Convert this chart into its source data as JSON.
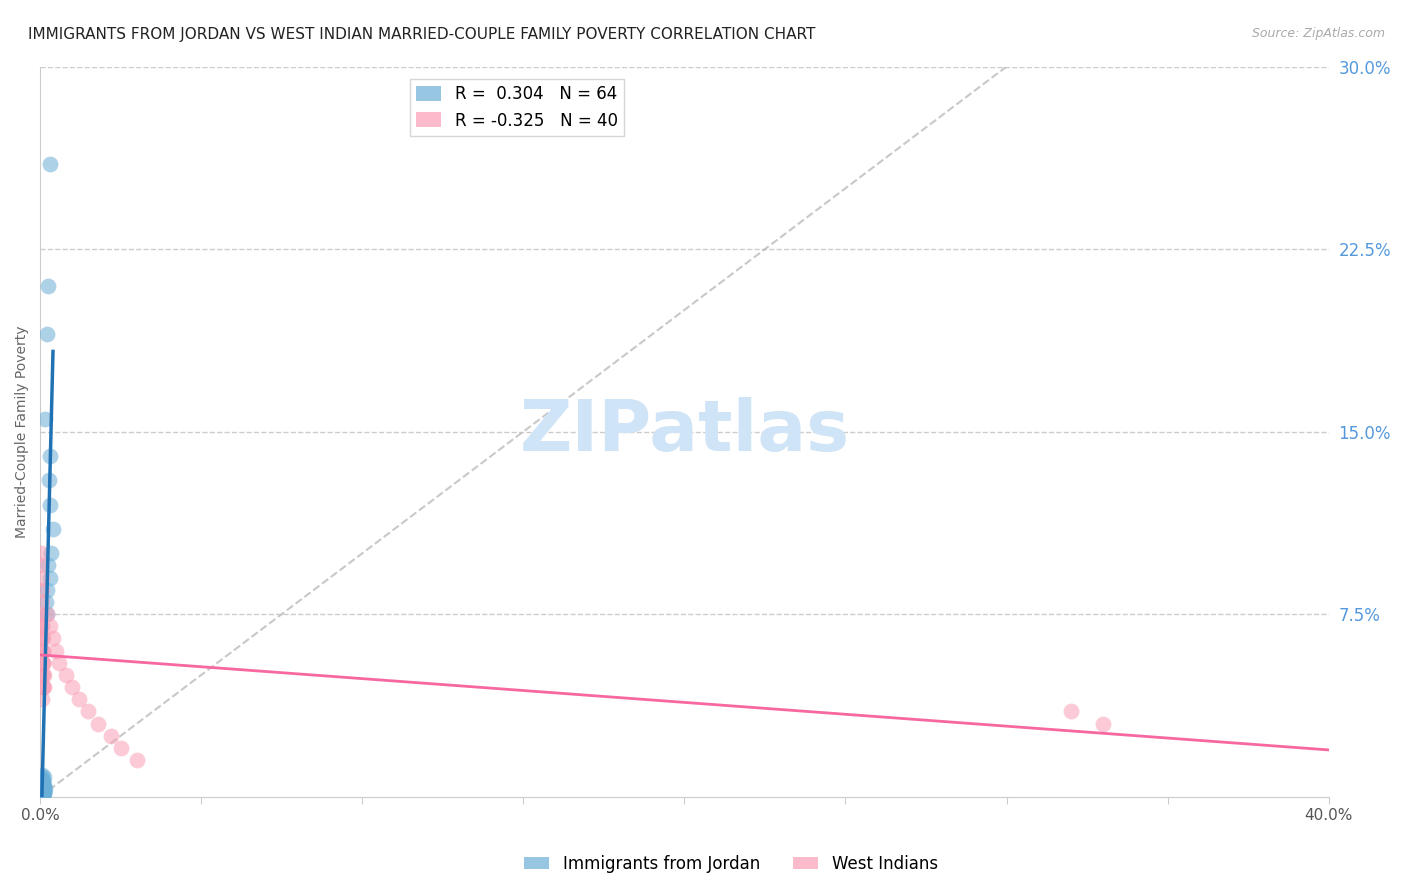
{
  "title": "IMMIGRANTS FROM JORDAN VS WEST INDIAN MARRIED-COUPLE FAMILY POVERTY CORRELATION CHART",
  "source": "Source: ZipAtlas.com",
  "ylabel": "Married-Couple Family Poverty",
  "legend_label_1": "Immigrants from Jordan",
  "legend_label_2": "West Indians",
  "R1": 0.304,
  "N1": 64,
  "R2": -0.325,
  "N2": 40,
  "color_blue": "#6baed6",
  "color_pink": "#fa9fb5",
  "color_blue_line": "#2171b5",
  "color_pink_line": "#f768a1",
  "color_dashed": "#bbbbbb",
  "xlim": [
    0.0,
    0.4
  ],
  "ylim": [
    0.0,
    0.3
  ],
  "jordan_x": [
    0.0005,
    0.001,
    0.0008,
    0.0012,
    0.0006,
    0.0009,
    0.0015,
    0.0007,
    0.0011,
    0.0004,
    0.0003,
    0.0006,
    0.0008,
    0.001,
    0.0005,
    0.0007,
    0.0009,
    0.0004,
    0.0006,
    0.0008,
    0.001,
    0.0012,
    0.0005,
    0.0003,
    0.0007,
    0.0009,
    0.0011,
    0.0006,
    0.0004,
    0.0008,
    0.001,
    0.0005,
    0.0007,
    0.0003,
    0.0009,
    0.0006,
    0.0004,
    0.0008,
    0.0005,
    0.0007,
    0.0003,
    0.0006,
    0.0004,
    0.0008,
    0.001,
    0.0005,
    0.0007,
    0.0009,
    0.0011,
    0.0013,
    0.002,
    0.0018,
    0.0022,
    0.003,
    0.0025,
    0.0035,
    0.004,
    0.003,
    0.0028,
    0.0032,
    0.0015,
    0.002,
    0.0025,
    0.003
  ],
  "jordan_y": [
    0.002,
    0.003,
    0.001,
    0.002,
    0.004,
    0.001,
    0.003,
    0.002,
    0.001,
    0.003,
    0.004,
    0.002,
    0.005,
    0.003,
    0.001,
    0.002,
    0.004,
    0.003,
    0.002,
    0.001,
    0.005,
    0.003,
    0.002,
    0.004,
    0.001,
    0.003,
    0.002,
    0.005,
    0.003,
    0.001,
    0.006,
    0.004,
    0.002,
    0.005,
    0.003,
    0.007,
    0.004,
    0.002,
    0.006,
    0.003,
    0.008,
    0.005,
    0.003,
    0.007,
    0.004,
    0.009,
    0.006,
    0.004,
    0.008,
    0.005,
    0.075,
    0.08,
    0.085,
    0.09,
    0.095,
    0.1,
    0.11,
    0.12,
    0.13,
    0.14,
    0.155,
    0.19,
    0.21,
    0.26
  ],
  "westindian_x": [
    0.0003,
    0.0005,
    0.0004,
    0.0006,
    0.0008,
    0.001,
    0.0007,
    0.0009,
    0.0005,
    0.0003,
    0.0006,
    0.0008,
    0.001,
    0.0012,
    0.0004,
    0.0007,
    0.0009,
    0.0005,
    0.0011,
    0.0006,
    0.0008,
    0.001,
    0.0004,
    0.0007,
    0.0009,
    0.002,
    0.003,
    0.004,
    0.005,
    0.006,
    0.008,
    0.01,
    0.012,
    0.015,
    0.018,
    0.022,
    0.025,
    0.03,
    0.32,
    0.33
  ],
  "westindian_y": [
    0.095,
    0.085,
    0.075,
    0.07,
    0.065,
    0.06,
    0.08,
    0.055,
    0.09,
    0.1,
    0.05,
    0.045,
    0.055,
    0.05,
    0.065,
    0.06,
    0.055,
    0.07,
    0.045,
    0.04,
    0.05,
    0.045,
    0.07,
    0.065,
    0.06,
    0.075,
    0.07,
    0.065,
    0.06,
    0.055,
    0.05,
    0.045,
    0.04,
    0.035,
    0.03,
    0.025,
    0.02,
    0.015,
    0.035,
    0.03
  ],
  "grid_color": "#cccccc",
  "background_color": "#ffffff",
  "title_fontsize": 11,
  "axis_label_fontsize": 10,
  "tick_fontsize": 11,
  "legend_fontsize": 12,
  "watermark_text": "ZIPatlas",
  "watermark_color": "#d0e4f7",
  "watermark_fontsize": 52
}
